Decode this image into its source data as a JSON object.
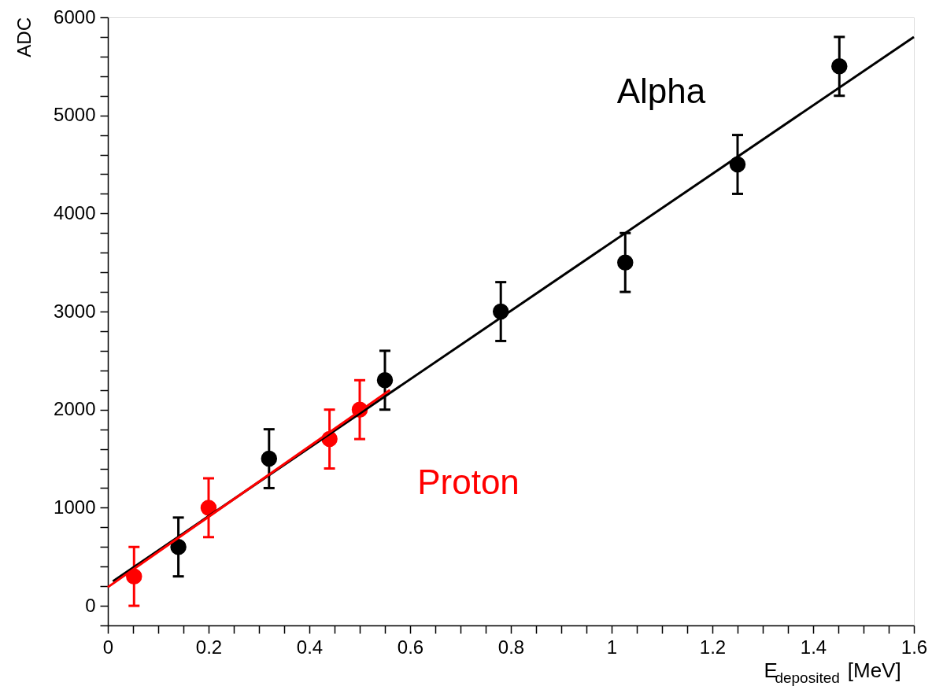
{
  "chart_data": {
    "type": "scatter",
    "xlabel": "E$_{deposited}$ [MeV]",
    "ylabel": "ADC",
    "xlim": [
      0,
      1.6
    ],
    "ylim": [
      -200,
      6000
    ],
    "xticks": [
      0,
      {
        "value": 0.05,
        "label": null
      },
      {
        "value": 0.1,
        "label": null
      },
      {
        "value": 0.15,
        "label": null
      },
      0.2,
      {
        "value": 0.25,
        "label": null
      },
      {
        "value": 0.3,
        "label": null
      },
      {
        "value": 0.35,
        "label": null
      },
      0.4,
      {
        "value": 0.45,
        "label": null
      },
      {
        "value": 0.5,
        "label": null
      },
      {
        "value": 0.55,
        "label": null
      },
      0.6,
      {
        "value": 0.65,
        "label": null
      },
      {
        "value": 0.7,
        "label": null
      },
      {
        "value": 0.75,
        "label": null
      },
      0.8,
      {
        "value": 0.85,
        "label": null
      },
      {
        "value": 0.9,
        "label": null
      },
      {
        "value": 0.95,
        "label": null
      },
      1,
      {
        "value": 1.05,
        "label": null
      },
      {
        "value": 1.1,
        "label": null
      },
      {
        "value": 1.15,
        "label": null
      },
      1.2,
      {
        "value": 1.25,
        "label": null
      },
      {
        "value": 1.3,
        "label": null
      },
      {
        "value": 1.35,
        "label": null
      },
      1.4,
      {
        "value": 1.45,
        "label": null
      },
      {
        "value": 1.5,
        "label": null
      },
      {
        "value": 1.55,
        "label": null
      },
      1.6
    ],
    "yticks": [
      {
        "value": -200,
        "label": null
      },
      0,
      {
        "value": 200,
        "label": null
      },
      {
        "value": 400,
        "label": null
      },
      {
        "value": 600,
        "label": null
      },
      {
        "value": 800,
        "label": null
      },
      1000,
      {
        "value": 1200,
        "label": null
      },
      {
        "value": 1400,
        "label": null
      },
      {
        "value": 1600,
        "label": null
      },
      {
        "value": 1800,
        "label": null
      },
      2000,
      {
        "value": 2200,
        "label": null
      },
      {
        "value": 2400,
        "label": null
      },
      {
        "value": 2600,
        "label": null
      },
      {
        "value": 2800,
        "label": null
      },
      3000,
      {
        "value": 3200,
        "label": null
      },
      {
        "value": 3400,
        "label": null
      },
      {
        "value": 3600,
        "label": null
      },
      {
        "value": 3800,
        "label": null
      },
      4000,
      {
        "value": 4200,
        "label": null
      },
      {
        "value": 4400,
        "label": null
      },
      {
        "value": 4600,
        "label": null
      },
      {
        "value": 4800,
        "label": null
      },
      5000,
      {
        "value": 5200,
        "label": null
      },
      {
        "value": 5400,
        "label": null
      },
      {
        "value": 5600,
        "label": null
      },
      {
        "value": 5800,
        "label": null
      },
      6000
    ],
    "grid": false,
    "marker": "circle",
    "series": [
      {
        "name": "Alpha",
        "color": "#000000",
        "x": [
          0.14,
          0.32,
          0.55,
          0.78,
          1.027,
          1.25,
          1.452
        ],
        "values": [
          600,
          1500,
          2300,
          3000,
          3500,
          4500,
          5500
        ],
        "errors": [
          300,
          300,
          300,
          300,
          300,
          300,
          300
        ],
        "xerrors": [
          0.01,
          0.01,
          0.01,
          0.01,
          0.01,
          0.01,
          0.01
        ]
      },
      {
        "name": "Proton",
        "color": "#ff0000",
        "x": [
          0.052,
          0.2,
          0.44,
          0.5
        ],
        "values": [
          300,
          1000,
          1700,
          2000
        ],
        "errors": [
          300,
          300,
          300,
          300
        ],
        "xerrors": [
          0.01,
          0.01,
          0.01,
          0.01
        ]
      },
      {
        "type": "line",
        "marker": "none",
        "color": "#000000",
        "x": [
          0.01,
          1.6
        ],
        "values": [
          250,
          5800
        ]
      },
      {
        "type": "line",
        "marker": "none",
        "color": "#ff0000",
        "x": [
          0,
          0.56
        ],
        "values": [
          190,
          2200
        ]
      }
    ]
  }
}
